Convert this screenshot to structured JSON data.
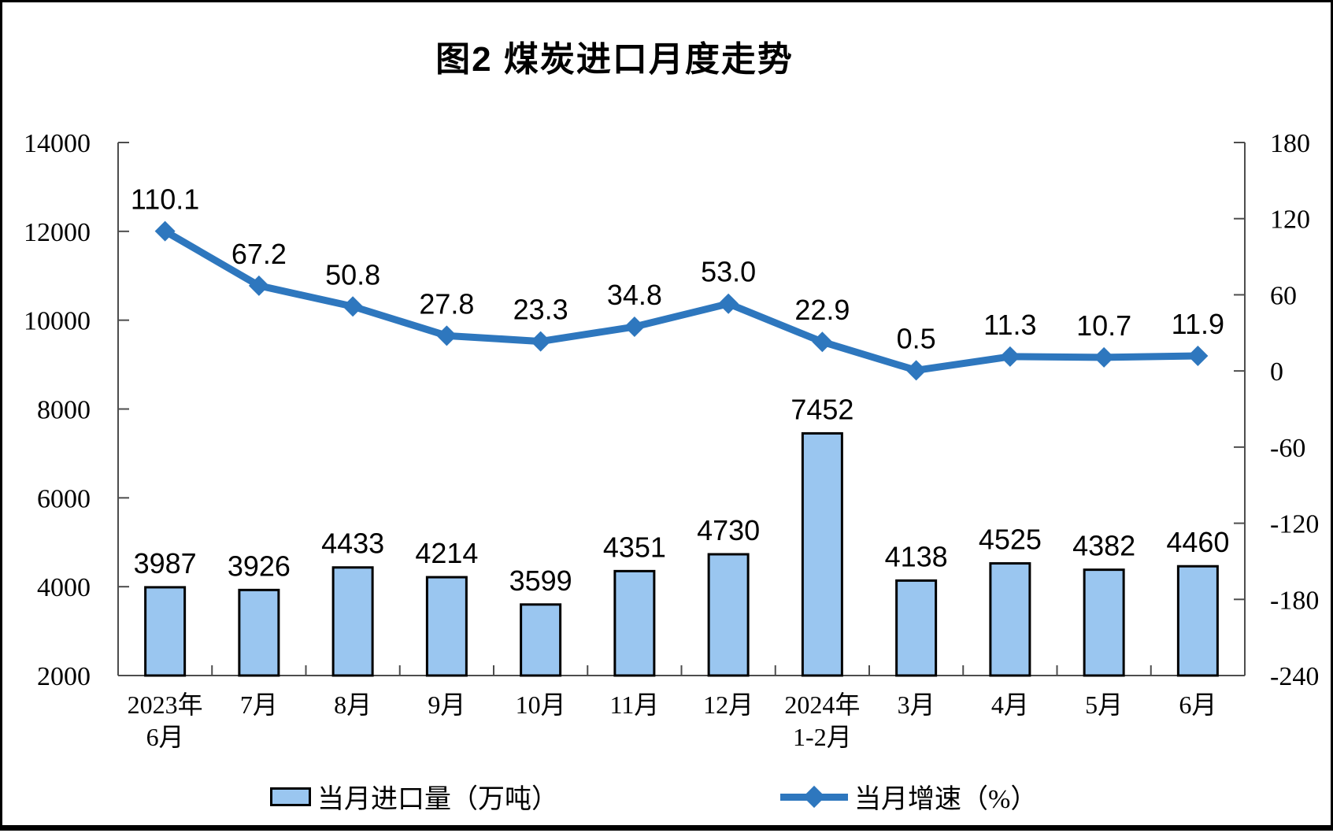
{
  "title": "图2 煤炭进口月度走势",
  "colors": {
    "bar_fill": "#9AC6F0",
    "bar_border": "#000000",
    "line": "#2E77BE",
    "axis": "#4d4d4d",
    "text": "#000000",
    "background": "#ffffff",
    "frame": "#000000"
  },
  "chart_data": {
    "type": "combo-bar-line",
    "title": "图2 煤炭进口月度走势",
    "categories": [
      [
        "2023年",
        "6月"
      ],
      [
        "7月"
      ],
      [
        "8月"
      ],
      [
        "9月"
      ],
      [
        "10月"
      ],
      [
        "11月"
      ],
      [
        "12月"
      ],
      [
        "2024年",
        "1-2月"
      ],
      [
        "3月"
      ],
      [
        "4月"
      ],
      [
        "5月"
      ],
      [
        "6月"
      ]
    ],
    "series": [
      {
        "name": "当月进口量（万吨）",
        "type": "bar",
        "axis": "left",
        "values": [
          3987,
          3926,
          4433,
          4214,
          3599,
          4351,
          4730,
          7452,
          4138,
          4525,
          4382,
          4460
        ],
        "labels": [
          "3987",
          "3926",
          "4433",
          "4214",
          "3599",
          "4351",
          "4730",
          "7452",
          "4138",
          "4525",
          "4382",
          "4460"
        ]
      },
      {
        "name": "当月增速（%）",
        "type": "line",
        "axis": "right",
        "values": [
          110.1,
          67.2,
          50.8,
          27.8,
          23.3,
          34.8,
          53.0,
          22.9,
          0.5,
          11.3,
          10.7,
          11.9
        ],
        "labels": [
          "110.1",
          "67.2",
          "50.8",
          "27.8",
          "23.3",
          "34.8",
          "53.0",
          "22.9",
          "0.5",
          "11.3",
          "10.7",
          "11.9"
        ]
      }
    ],
    "left_axis": {
      "min": 2000,
      "max": 14000,
      "ticks": [
        14000,
        12000,
        10000,
        8000,
        6000,
        4000,
        2000
      ]
    },
    "right_axis": {
      "min": -240,
      "max": 180,
      "ticks": [
        180,
        120,
        60,
        0,
        -60,
        -120,
        -180,
        -240
      ]
    },
    "grid": "off",
    "legend_position": "bottom",
    "legend": [
      {
        "label": "当月进口量（万吨）",
        "swatch": "bar"
      },
      {
        "label": "当月增速（%）",
        "swatch": "line"
      }
    ]
  }
}
